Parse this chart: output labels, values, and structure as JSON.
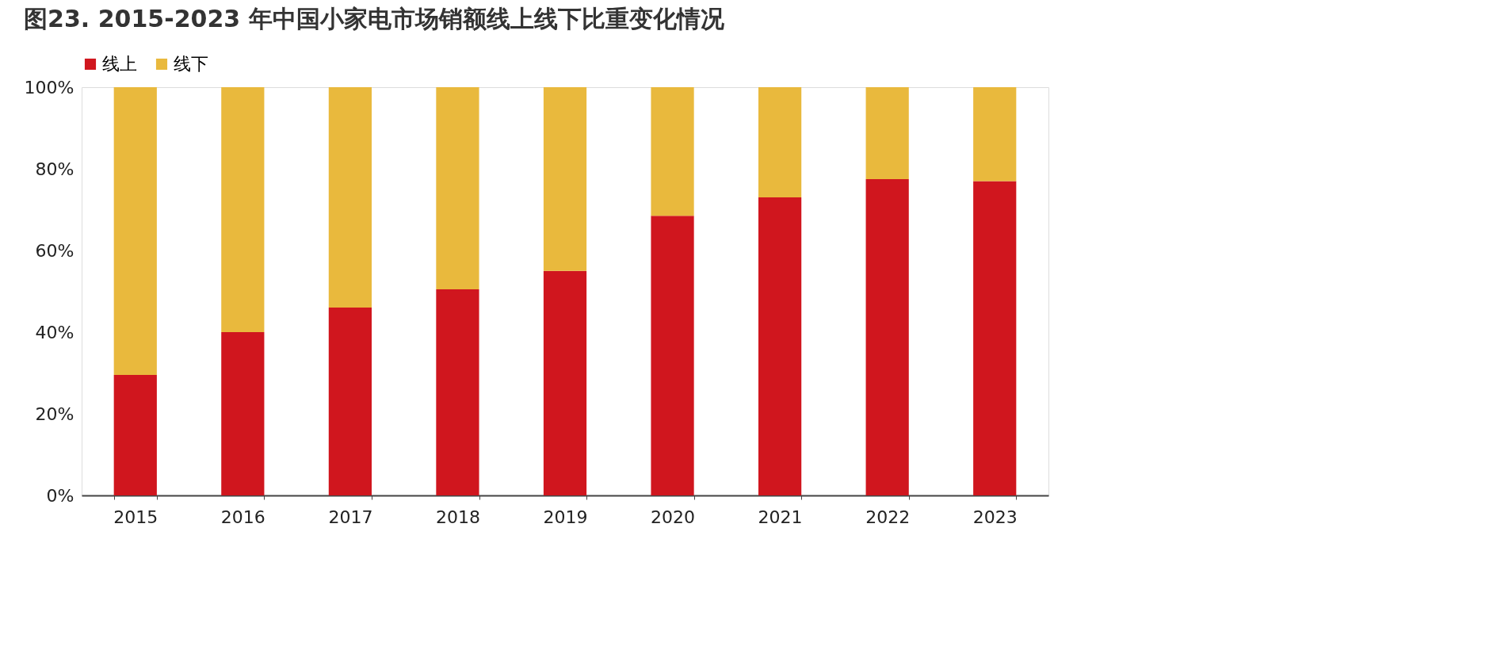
{
  "chart_data": {
    "type": "bar",
    "title": "图23. 2015-2023 年中国小家电市场销额线上线下比重变化情况",
    "stacked": true,
    "legend": "top",
    "categories": [
      "2015",
      "2016",
      "2017",
      "2018",
      "2019",
      "2020",
      "2021",
      "2022",
      "2023"
    ],
    "series": [
      {
        "name": "线上",
        "color": "#d0161e",
        "values": [
          29.5,
          40,
          46,
          50.5,
          55,
          68.5,
          73,
          77.5,
          77
        ]
      },
      {
        "name": "线下",
        "color": "#e9b93d",
        "values": [
          70.5,
          60,
          54,
          49.5,
          45,
          31.5,
          27,
          22.5,
          23
        ]
      }
    ],
    "ylim": [
      0,
      100
    ],
    "yticks": [
      {
        "value": 0,
        "label": "0%"
      },
      {
        "value": 20,
        "label": "20%"
      },
      {
        "value": 40,
        "label": "40%"
      },
      {
        "value": 60,
        "label": "60%"
      },
      {
        "value": 80,
        "label": "80%"
      },
      {
        "value": 100,
        "label": "100%"
      }
    ],
    "grid": false
  }
}
